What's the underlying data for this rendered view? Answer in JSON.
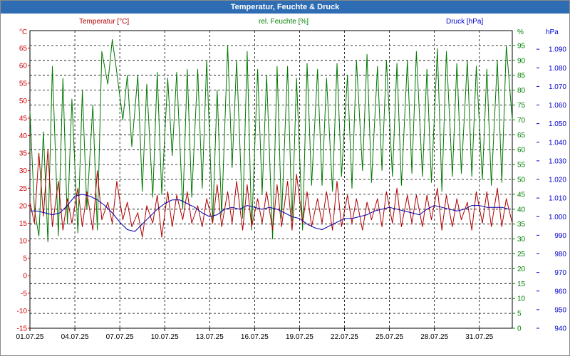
{
  "window": {
    "title": "Temperatur, Feuchte & Druck"
  },
  "chart_data": {
    "type": "line",
    "title": "Temperatur, Feuchte & Druck",
    "grid": true,
    "x_tick_labels": [
      "01.07.25",
      "04.07.25",
      "07.07.25",
      "10.07.25",
      "13.07.25",
      "16.07.25",
      "19.07.25",
      "22.07.25",
      "25.07.25",
      "28.07.25",
      "31.07.25"
    ],
    "x_range_days": [
      1,
      33.2
    ],
    "axes": {
      "left": {
        "unit": "°C",
        "color": "#cc0000",
        "min": -15,
        "max": 70,
        "step": 5,
        "ticks": [
          "-15",
          "-10",
          "-5",
          "0",
          "5",
          "10",
          "15",
          "20",
          "25",
          "30",
          "35",
          "40",
          "45",
          "50",
          "55",
          "60",
          "65"
        ]
      },
      "middle": {
        "unit": "%",
        "color": "#008000",
        "min": 0,
        "max": 100,
        "step": 5,
        "ticks": [
          "0",
          "5",
          "10",
          "15",
          "20",
          "25",
          "30",
          "35",
          "40",
          "45",
          "50",
          "55",
          "60",
          "65",
          "70",
          "75",
          "80",
          "85",
          "90",
          "95"
        ]
      },
      "right": {
        "unit": "hPa",
        "color": "#0000cc",
        "min": 940,
        "max": 1100,
        "step": 10,
        "ticks": [
          "940",
          "950",
          "960",
          "970",
          "980",
          "990",
          "1.000",
          "1.010",
          "1.020",
          "1.030",
          "1.040",
          "1.050",
          "1.060",
          "1.070",
          "1.080",
          "1.090"
        ]
      }
    },
    "series": [
      {
        "name": "Temperatur [°C]",
        "axis": "left",
        "color": "#b00000",
        "x": [
          1.0,
          1.3,
          1.6,
          1.9,
          2.2,
          2.5,
          2.9,
          3.2,
          3.5,
          3.8,
          4.2,
          4.5,
          4.8,
          5.2,
          5.5,
          5.8,
          6.2,
          6.5,
          6.8,
          7.2,
          7.5,
          7.8,
          8.2,
          8.5,
          8.8,
          9.2,
          9.5,
          9.8,
          10.2,
          10.5,
          10.8,
          11.2,
          11.5,
          11.8,
          12.2,
          12.5,
          12.8,
          13.2,
          13.5,
          13.8,
          14.2,
          14.5,
          14.8,
          15.2,
          15.5,
          15.8,
          16.2,
          16.5,
          16.8,
          17.2,
          17.5,
          17.8,
          18.2,
          18.5,
          18.8,
          19.2,
          19.5,
          19.8,
          20.2,
          20.5,
          20.8,
          21.2,
          21.5,
          21.8,
          22.2,
          22.5,
          22.8,
          23.2,
          23.5,
          23.8,
          24.2,
          24.5,
          24.8,
          25.2,
          25.5,
          25.8,
          26.2,
          26.5,
          26.8,
          27.2,
          27.5,
          27.8,
          28.2,
          28.5,
          28.8,
          29.2,
          29.5,
          29.8,
          30.2,
          30.5,
          30.8,
          31.2,
          31.5,
          31.8,
          32.2,
          32.5,
          32.8,
          33.2
        ],
        "values": [
          21,
          15,
          35,
          17,
          36,
          14,
          27,
          13,
          22,
          15,
          25,
          14,
          24,
          13,
          30,
          16,
          21,
          15,
          27,
          16,
          21,
          14,
          18,
          11,
          20,
          15,
          23,
          11,
          24,
          14,
          23,
          16,
          24,
          15,
          20,
          14,
          22,
          15,
          26,
          14,
          24,
          15,
          27,
          13,
          26,
          14,
          22,
          15,
          24,
          13,
          26,
          14,
          27,
          13,
          29,
          15,
          24,
          14,
          22,
          15,
          24,
          13,
          27,
          14,
          23,
          15,
          22,
          13,
          21,
          16,
          22,
          14,
          24,
          15,
          25,
          14,
          23,
          15,
          23,
          14,
          23,
          16,
          25,
          13,
          23,
          14,
          22,
          16,
          21,
          13,
          24,
          15,
          24,
          14,
          25,
          14,
          22,
          15
        ]
      },
      {
        "name": "rel. Feuchte [%]",
        "axis": "middle",
        "color": "#007700",
        "x": [
          1.0,
          1.3,
          1.6,
          1.9,
          2.2,
          2.5,
          2.9,
          3.2,
          3.5,
          3.8,
          4.2,
          4.5,
          4.8,
          5.2,
          5.5,
          5.8,
          6.2,
          6.5,
          6.8,
          7.2,
          7.5,
          7.8,
          8.2,
          8.5,
          8.8,
          9.2,
          9.5,
          9.8,
          10.2,
          10.5,
          10.8,
          11.2,
          11.5,
          11.8,
          12.2,
          12.5,
          12.8,
          13.2,
          13.5,
          13.8,
          14.2,
          14.5,
          14.8,
          15.2,
          15.5,
          15.8,
          16.2,
          16.5,
          16.8,
          17.2,
          17.5,
          17.8,
          18.2,
          18.5,
          18.8,
          19.2,
          19.5,
          19.8,
          20.2,
          20.5,
          20.8,
          21.2,
          21.5,
          21.8,
          22.2,
          22.5,
          22.8,
          23.2,
          23.5,
          23.8,
          24.2,
          24.5,
          24.8,
          25.2,
          25.5,
          25.8,
          26.2,
          26.5,
          26.8,
          27.2,
          27.5,
          27.8,
          28.2,
          28.5,
          28.8,
          29.2,
          29.5,
          29.8,
          30.2,
          30.5,
          30.8,
          31.2,
          31.5,
          31.8,
          32.2,
          32.5,
          32.8,
          33.2
        ],
        "values": [
          73,
          40,
          31,
          66,
          29,
          88,
          31,
          84,
          35,
          77,
          32,
          80,
          40,
          75,
          33,
          93,
          82,
          97,
          86,
          70,
          85,
          61,
          85,
          46,
          82,
          44,
          86,
          45,
          84,
          58,
          86,
          40,
          87,
          44,
          87,
          47,
          90,
          36,
          80,
          38,
          95,
          54,
          90,
          37,
          93,
          33,
          87,
          45,
          85,
          30,
          88,
          37,
          88,
          36,
          84,
          33,
          89,
          48,
          87,
          48,
          84,
          46,
          89,
          51,
          85,
          47,
          90,
          53,
          92,
          49,
          88,
          53,
          90,
          51,
          89,
          48,
          90,
          52,
          93,
          51,
          87,
          49,
          94,
          46,
          93,
          51,
          89,
          52,
          90,
          51,
          88,
          50,
          87,
          48,
          90,
          49,
          95,
          70
        ]
      },
      {
        "name": "Druck [hPa]",
        "axis": "right",
        "color": "#0000aa",
        "x": [
          1,
          1.5,
          2,
          2.5,
          3,
          3.5,
          4,
          4.5,
          5,
          5.5,
          6,
          6.5,
          7,
          7.5,
          8,
          8.5,
          9,
          9.5,
          10,
          10.5,
          11,
          11.5,
          12,
          12.5,
          13,
          13.5,
          14,
          14.5,
          15,
          15.5,
          16,
          16.5,
          17,
          17.5,
          18,
          18.5,
          19,
          19.5,
          20,
          20.5,
          21,
          21.5,
          22,
          22.5,
          23,
          23.5,
          24,
          24.5,
          25,
          25.5,
          26,
          26.5,
          27,
          27.5,
          28,
          28.5,
          29,
          29.5,
          30,
          30.5,
          31,
          31.5,
          32,
          32.5,
          33
        ],
        "values": [
          1003,
          1003,
          1002,
          1001,
          1002,
          1006,
          1011,
          1012,
          1011,
          1009,
          1006,
          1002,
          997,
          993,
          992,
          996,
          1000,
          1004,
          1007,
          1009,
          1009,
          1007,
          1005,
          1002,
          1000,
          1001,
          1004,
          1005,
          1004,
          1006,
          1005,
          1004,
          1005,
          1004,
          1002,
          1000,
          999,
          996,
          994,
          993,
          995,
          997,
          999,
          999,
          1000,
          1001,
          1003,
          1004,
          1005,
          1004,
          1003,
          1002,
          1001,
          1004,
          1006,
          1005,
          1004,
          1003,
          1004,
          1006,
          1006,
          1005,
          1005,
          1005,
          1004
        ]
      }
    ]
  }
}
